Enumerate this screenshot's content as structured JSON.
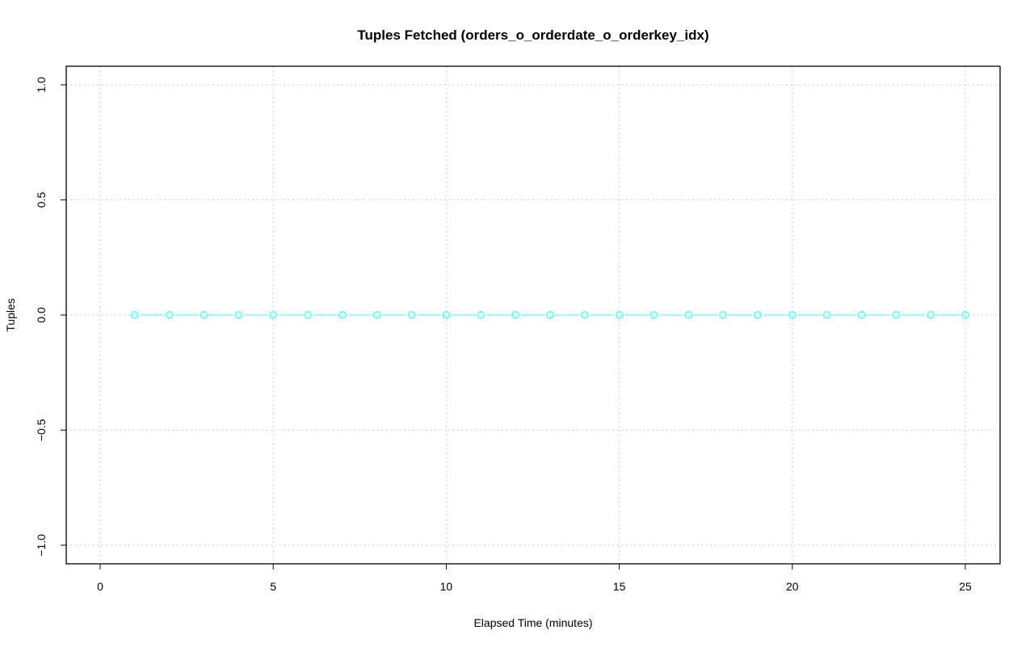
{
  "chart_data": {
    "type": "line",
    "title": "Tuples Fetched (orders_o_orderdate_o_orderkey_idx)",
    "xlabel": "Elapsed Time (minutes)",
    "ylabel": "Tuples",
    "xlim": [
      -1,
      26
    ],
    "ylim": [
      -1.08,
      1.08
    ],
    "xticks": [
      0,
      5,
      10,
      15,
      20,
      25
    ],
    "yticks": [
      -1.0,
      -0.5,
      0.0,
      0.5,
      1.0
    ],
    "xtick_labels": [
      "0",
      "5",
      "10",
      "15",
      "20",
      "25"
    ],
    "ytick_labels": [
      "−1.0",
      "−0.5",
      "0.0",
      "0.5",
      "1.0"
    ],
    "grid": true,
    "series": [
      {
        "color": "#66ffff",
        "marker": "open-circle",
        "x": [
          1,
          2,
          3,
          4,
          5,
          6,
          7,
          8,
          9,
          10,
          11,
          12,
          13,
          14,
          15,
          16,
          17,
          18,
          19,
          20,
          21,
          22,
          23,
          24,
          25
        ],
        "y": [
          0,
          0,
          0,
          0,
          0,
          0,
          0,
          0,
          0,
          0,
          0,
          0,
          0,
          0,
          0,
          0,
          0,
          0,
          0,
          0,
          0,
          0,
          0,
          0,
          0
        ]
      }
    ]
  }
}
